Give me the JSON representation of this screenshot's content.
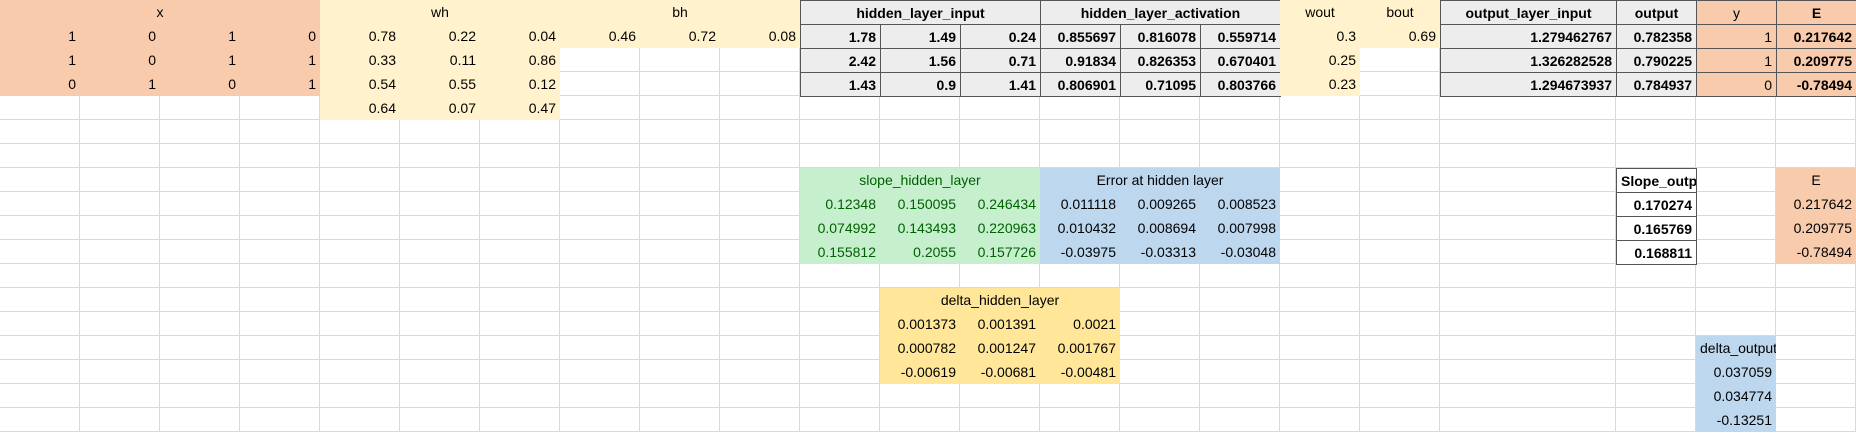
{
  "sheet": {
    "x": {
      "header": "x",
      "rows": [
        [
          1,
          0,
          1,
          0
        ],
        [
          1,
          0,
          1,
          1
        ],
        [
          0,
          1,
          0,
          1
        ]
      ]
    },
    "wh": {
      "header": "wh",
      "rows": [
        [
          0.78,
          0.22,
          0.04
        ],
        [
          0.33,
          0.11,
          0.86
        ],
        [
          0.54,
          0.55,
          0.12
        ],
        [
          0.64,
          0.07,
          0.47
        ]
      ]
    },
    "bh": {
      "header": "bh",
      "rows": [
        [
          0.46,
          0.72,
          0.08
        ]
      ]
    },
    "hidden_layer_input": {
      "header": "hidden_layer_input",
      "rows": [
        [
          1.78,
          1.49,
          0.24
        ],
        [
          2.42,
          1.56,
          0.71
        ],
        [
          1.43,
          0.9,
          1.41
        ]
      ]
    },
    "hidden_layer_activation": {
      "header": "hidden_layer_activation",
      "rows": [
        [
          0.855697,
          0.816078,
          0.559714
        ],
        [
          0.91834,
          0.826353,
          0.670401
        ],
        [
          0.806901,
          0.71095,
          0.803766
        ]
      ]
    },
    "wout": {
      "header": "wout",
      "rows": [
        [
          0.3
        ],
        [
          0.25
        ],
        [
          0.23
        ]
      ]
    },
    "bout": {
      "header": "bout",
      "rows": [
        [
          0.69
        ]
      ]
    },
    "output_layer_input": {
      "header": "output_layer_input",
      "rows": [
        [
          1.279462767
        ],
        [
          1.326282528
        ],
        [
          1.294673937
        ]
      ]
    },
    "output": {
      "header": "output",
      "rows": [
        [
          0.782358
        ],
        [
          0.790225
        ],
        [
          0.784937
        ]
      ]
    },
    "y": {
      "header": "y",
      "rows": [
        [
          1
        ],
        [
          1
        ],
        [
          0
        ]
      ]
    },
    "E": {
      "header": "E",
      "rows": [
        [
          0.217642
        ],
        [
          0.209775
        ],
        [
          -0.78494
        ]
      ]
    },
    "slope_hidden_layer": {
      "header": "slope_hidden_layer",
      "rows": [
        [
          0.12348,
          0.150095,
          0.246434
        ],
        [
          0.074992,
          0.143493,
          0.220963
        ],
        [
          0.155812,
          0.2055,
          0.157726
        ]
      ]
    },
    "error_at_hidden_layer": {
      "header": "Error at hidden layer",
      "rows": [
        [
          0.011118,
          0.009265,
          0.008523
        ],
        [
          0.010432,
          0.008694,
          0.007998
        ],
        [
          -0.03975,
          -0.03313,
          -0.03048
        ]
      ]
    },
    "slope_output": {
      "header": "Slope_output",
      "rows": [
        [
          0.170274
        ],
        [
          0.165769
        ],
        [
          0.168811
        ]
      ]
    },
    "E_copy": {
      "header": "E",
      "rows": [
        [
          0.217642
        ],
        [
          0.209775
        ],
        [
          -0.78494
        ]
      ]
    },
    "delta_hidden_layer": {
      "header": "delta_hidden_layer",
      "rows": [
        [
          0.001373,
          0.001391,
          0.0021
        ],
        [
          0.000782,
          0.001247,
          0.001767
        ],
        [
          -0.00619,
          -0.00681,
          -0.00481
        ]
      ]
    },
    "delta_output": {
      "header": "delta_output",
      "rows": [
        [
          0.037059
        ],
        [
          0.034774
        ],
        [
          -0.13251
        ]
      ]
    }
  }
}
